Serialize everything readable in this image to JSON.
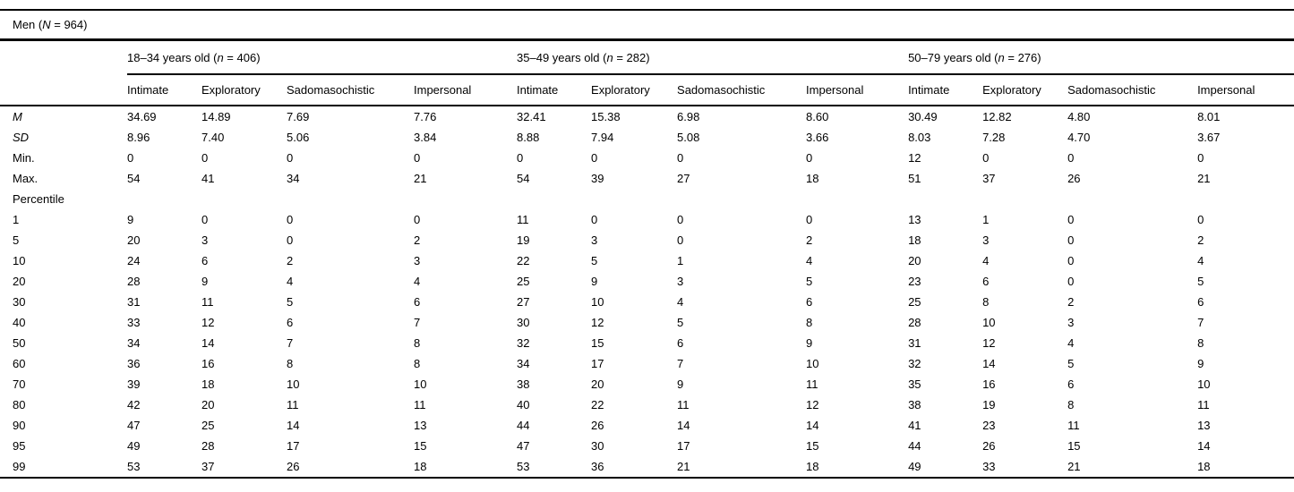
{
  "colors": {
    "text": "#000000",
    "background": "#ffffff",
    "rule": "#000000"
  },
  "table": {
    "title": {
      "pre": "Men (",
      "var": "N",
      "post": " = 964)"
    },
    "groups": [
      {
        "label_pre": "18–34 years old (",
        "n_var": "n",
        "label_post": " = 406)",
        "subcolumns": [
          "Intimate",
          "Exploratory",
          "Sadomasochistic",
          "Impersonal"
        ]
      },
      {
        "label_pre": "35–49 years old (",
        "n_var": "n",
        "label_post": " = 282)",
        "subcolumns": [
          "Intimate",
          "Exploratory",
          "Sadomasochistic",
          "Impersonal"
        ]
      },
      {
        "label_pre": "50–79 years old (",
        "n_var": "n",
        "label_post": " = 276)",
        "subcolumns": [
          "Intimate",
          "Exploratory",
          "Sadomasochistic",
          "Impersonal"
        ]
      }
    ],
    "rows": [
      {
        "label": "M",
        "italic": true,
        "values": [
          "34.69",
          "14.89",
          "7.69",
          "7.76",
          "32.41",
          "15.38",
          "6.98",
          "8.60",
          "30.49",
          "12.82",
          "4.80",
          "8.01"
        ]
      },
      {
        "label": "SD",
        "italic": true,
        "values": [
          "8.96",
          "7.40",
          "5.06",
          "3.84",
          "8.88",
          "7.94",
          "5.08",
          "3.66",
          "8.03",
          "7.28",
          "4.70",
          "3.67"
        ]
      },
      {
        "label": "Min.",
        "italic": false,
        "values": [
          "0",
          "0",
          "0",
          "0",
          "0",
          "0",
          "0",
          "0",
          "12",
          "0",
          "0",
          "0"
        ]
      },
      {
        "label": "Max.",
        "italic": false,
        "values": [
          "54",
          "41",
          "34",
          "21",
          "54",
          "39",
          "27",
          "18",
          "51",
          "37",
          "26",
          "21"
        ]
      },
      {
        "label": "Percentile",
        "italic": false,
        "values": []
      },
      {
        "label": "1",
        "italic": false,
        "values": [
          "9",
          "0",
          "0",
          "0",
          "11",
          "0",
          "0",
          "0",
          "13",
          "1",
          "0",
          "0"
        ]
      },
      {
        "label": "5",
        "italic": false,
        "values": [
          "20",
          "3",
          "0",
          "2",
          "19",
          "3",
          "0",
          "2",
          "18",
          "3",
          "0",
          "2"
        ]
      },
      {
        "label": "10",
        "italic": false,
        "values": [
          "24",
          "6",
          "2",
          "3",
          "22",
          "5",
          "1",
          "4",
          "20",
          "4",
          "0",
          "4"
        ]
      },
      {
        "label": "20",
        "italic": false,
        "values": [
          "28",
          "9",
          "4",
          "4",
          "25",
          "9",
          "3",
          "5",
          "23",
          "6",
          "0",
          "5"
        ]
      },
      {
        "label": "30",
        "italic": false,
        "values": [
          "31",
          "11",
          "5",
          "6",
          "27",
          "10",
          "4",
          "6",
          "25",
          "8",
          "2",
          "6"
        ]
      },
      {
        "label": "40",
        "italic": false,
        "values": [
          "33",
          "12",
          "6",
          "7",
          "30",
          "12",
          "5",
          "8",
          "28",
          "10",
          "3",
          "7"
        ]
      },
      {
        "label": "50",
        "italic": false,
        "values": [
          "34",
          "14",
          "7",
          "8",
          "32",
          "15",
          "6",
          "9",
          "31",
          "12",
          "4",
          "8"
        ]
      },
      {
        "label": "60",
        "italic": false,
        "values": [
          "36",
          "16",
          "8",
          "8",
          "34",
          "17",
          "7",
          "10",
          "32",
          "14",
          "5",
          "9"
        ]
      },
      {
        "label": "70",
        "italic": false,
        "values": [
          "39",
          "18",
          "10",
          "10",
          "38",
          "20",
          "9",
          "11",
          "35",
          "16",
          "6",
          "10"
        ]
      },
      {
        "label": "80",
        "italic": false,
        "values": [
          "42",
          "20",
          "11",
          "11",
          "40",
          "22",
          "11",
          "12",
          "38",
          "19",
          "8",
          "11"
        ]
      },
      {
        "label": "90",
        "italic": false,
        "values": [
          "47",
          "25",
          "14",
          "13",
          "44",
          "26",
          "14",
          "14",
          "41",
          "23",
          "11",
          "13"
        ]
      },
      {
        "label": "95",
        "italic": false,
        "values": [
          "49",
          "28",
          "17",
          "15",
          "47",
          "30",
          "17",
          "15",
          "44",
          "26",
          "15",
          "14"
        ]
      },
      {
        "label": "99",
        "italic": false,
        "values": [
          "53",
          "37",
          "26",
          "18",
          "53",
          "36",
          "21",
          "18",
          "49",
          "33",
          "21",
          "18"
        ]
      }
    ]
  }
}
